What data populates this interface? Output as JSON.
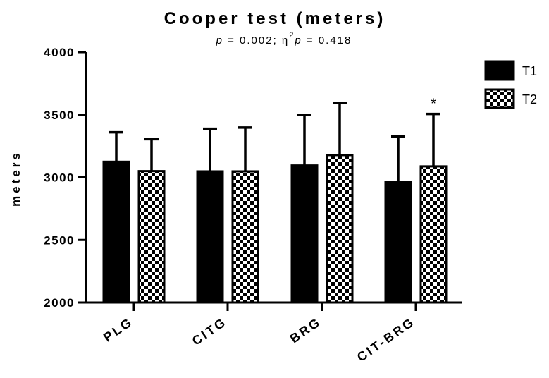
{
  "chart_data": {
    "type": "bar",
    "title": "Cooper test (meters)",
    "subtitle": {
      "p_symbol": "p",
      "p_text": " = 0.002; η",
      "sup": "2",
      "p2_symbol": "p",
      "eta_text": " = 0.418"
    },
    "ylabel": "meters",
    "ylim": [
      2000,
      4000
    ],
    "yticks": [
      "2000",
      "2500",
      "3000",
      "3500",
      "4000"
    ],
    "ytick_values": [
      2000,
      2500,
      3000,
      3500,
      4000
    ],
    "categories": [
      "PLG",
      "CITG",
      "BRG",
      "CIT-BRG"
    ],
    "series": [
      {
        "name": "T1",
        "pattern": "solid",
        "color": "#000000",
        "values": [
          3125,
          3048,
          3095,
          2962
        ],
        "error": [
          235,
          340,
          405,
          365
        ]
      },
      {
        "name": "T2",
        "pattern": "checkerboard",
        "color": "#000000",
        "values": [
          3050,
          3048,
          3178,
          3088
        ],
        "error": [
          255,
          350,
          418,
          418
        ]
      }
    ],
    "annotations": [
      {
        "text": "*",
        "category": "CIT-BRG",
        "series": "T2"
      }
    ],
    "legend_position": "top-right",
    "grid": false
  }
}
